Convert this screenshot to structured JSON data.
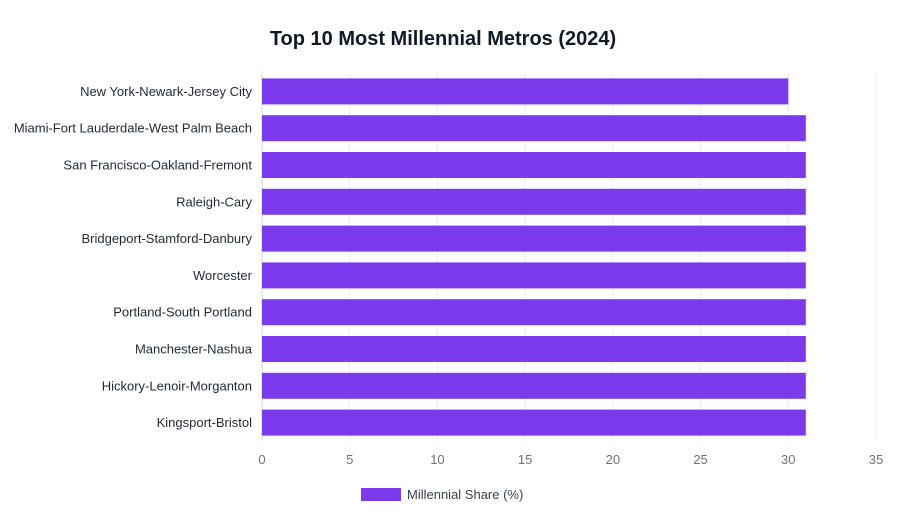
{
  "chart_data": {
    "type": "bar",
    "orientation": "horizontal",
    "title": "Top 10 Most Millennial Metros (2024)",
    "xlabel": "",
    "ylabel": "",
    "categories": [
      "New York-Newark-Jersey City",
      "Miami-Fort Lauderdale-West Palm Beach",
      "San Francisco-Oakland-Fremont",
      "Raleigh-Cary",
      "Bridgeport-Stamford-Danbury",
      "Worcester",
      "Portland-South Portland",
      "Manchester-Nashua",
      "Hickory-Lenoir-Morganton",
      "Kingsport-Bristol"
    ],
    "series": [
      {
        "name": "Millennial Share (%)",
        "values": [
          30.0,
          31.0,
          31.0,
          31.0,
          31.0,
          31.0,
          31.0,
          31.0,
          31.0,
          31.0
        ],
        "color": "#7c3aed"
      }
    ],
    "xlim": [
      0,
      35
    ],
    "xticks": [
      0,
      5,
      10,
      15,
      20,
      25,
      30,
      35
    ],
    "grid": true,
    "legend_position": "bottom"
  }
}
